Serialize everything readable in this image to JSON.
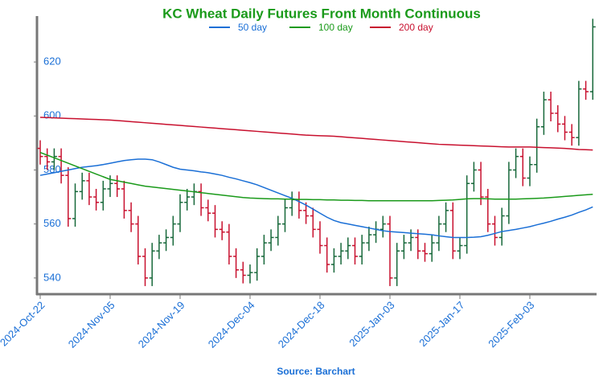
{
  "chart_data": {
    "type": "ohlc",
    "title": "KC Wheat Daily Futures Front Month Continuous",
    "source": "Source: Barchart",
    "categories": [
      "2024-Oct-22",
      null,
      null,
      null,
      null,
      null,
      null,
      null,
      null,
      null,
      "2024-Nov-05",
      null,
      null,
      null,
      null,
      null,
      null,
      null,
      null,
      null,
      "2024-Nov-19",
      null,
      null,
      null,
      null,
      null,
      null,
      null,
      null,
      null,
      "2024-Dec-04",
      null,
      null,
      null,
      null,
      null,
      null,
      null,
      null,
      null,
      "2024-Dec-18",
      null,
      null,
      null,
      null,
      null,
      null,
      null,
      null,
      null,
      "2025-Jan-03",
      null,
      null,
      null,
      null,
      null,
      null,
      null,
      null,
      null,
      "2025-Jan-17",
      null,
      null,
      null,
      null,
      null,
      null,
      null,
      null,
      null,
      "2025-Feb-03",
      null,
      null,
      null,
      null,
      null,
      null,
      null,
      null,
      null
    ],
    "open": [
      588,
      585,
      583,
      585,
      578,
      562,
      572,
      576,
      570,
      568,
      573,
      575,
      573,
      565,
      560,
      548,
      540,
      550,
      553,
      555,
      560,
      568,
      570,
      572,
      566,
      564,
      558,
      557,
      548,
      543,
      541,
      542,
      548,
      553,
      555,
      560,
      566,
      569,
      565,
      563,
      558,
      552,
      545,
      548,
      550,
      552,
      548,
      553,
      556,
      558,
      560,
      540,
      550,
      553,
      555,
      550,
      549,
      553,
      560,
      565,
      550,
      552,
      575,
      580,
      570,
      560,
      555,
      563,
      580,
      585,
      577,
      582,
      596,
      606,
      601,
      597,
      594,
      592,
      610,
      609
    ],
    "high": [
      591,
      588,
      588,
      588,
      581,
      575,
      579,
      579,
      573,
      576,
      578,
      578,
      576,
      568,
      563,
      551,
      553,
      556,
      558,
      563,
      571,
      573,
      575,
      575,
      569,
      567,
      561,
      560,
      551,
      546,
      545,
      551,
      556,
      558,
      563,
      569,
      572,
      572,
      568,
      566,
      561,
      555,
      551,
      553,
      555,
      555,
      556,
      559,
      561,
      563,
      563,
      553,
      556,
      558,
      558,
      553,
      556,
      563,
      568,
      568,
      555,
      578,
      583,
      583,
      573,
      563,
      566,
      583,
      588,
      588,
      585,
      599,
      609,
      609,
      604,
      600,
      597,
      613,
      613,
      636
    ],
    "low": [
      582,
      580,
      580,
      575,
      559,
      559,
      569,
      567,
      565,
      565,
      570,
      570,
      562,
      557,
      545,
      537,
      537,
      547,
      550,
      552,
      557,
      565,
      567,
      563,
      561,
      555,
      554,
      545,
      540,
      538,
      538,
      539,
      545,
      550,
      552,
      557,
      563,
      562,
      560,
      555,
      549,
      542,
      542,
      545,
      547,
      545,
      545,
      550,
      553,
      555,
      537,
      537,
      547,
      550,
      547,
      546,
      546,
      550,
      557,
      547,
      547,
      549,
      572,
      567,
      557,
      552,
      552,
      560,
      577,
      574,
      574,
      579,
      593,
      598,
      594,
      591,
      589,
      589,
      606,
      606
    ],
    "close": [
      585,
      583,
      585,
      578,
      562,
      572,
      576,
      570,
      568,
      573,
      575,
      573,
      565,
      560,
      548,
      540,
      550,
      553,
      555,
      560,
      568,
      570,
      572,
      566,
      564,
      558,
      557,
      548,
      543,
      541,
      542,
      548,
      553,
      555,
      560,
      566,
      569,
      565,
      563,
      558,
      552,
      545,
      548,
      550,
      552,
      548,
      553,
      556,
      558,
      560,
      540,
      550,
      553,
      555,
      550,
      549,
      553,
      560,
      565,
      550,
      552,
      575,
      580,
      570,
      560,
      555,
      563,
      580,
      585,
      577,
      582,
      596,
      606,
      601,
      597,
      594,
      592,
      610,
      609,
      633
    ],
    "up_color": "#17683a",
    "down_color": "#c8102e",
    "series": [
      {
        "name": "50 day",
        "color": "#1a6fd6",
        "values": [
          578,
          578.5,
          579,
          579.5,
          580,
          580.5,
          581,
          581.3,
          581.6,
          582,
          582.5,
          583,
          583.5,
          583.8,
          584,
          584,
          583.8,
          583,
          582,
          581,
          580.3,
          580,
          579.7,
          579.3,
          579,
          578.5,
          578,
          577.3,
          576.7,
          576,
          575.3,
          574.5,
          573.5,
          572.5,
          571.5,
          570.5,
          569.5,
          568.3,
          567,
          565.5,
          564,
          562.5,
          561.3,
          560.5,
          560,
          559.5,
          559,
          558.5,
          558,
          557.5,
          557.2,
          557,
          556.8,
          556.6,
          556.4,
          556.2,
          556,
          555.6,
          555.3,
          555,
          555,
          555,
          555.1,
          555.3,
          555.8,
          556.5,
          557.2,
          557.6,
          558,
          558.5,
          559,
          559.7,
          560.3,
          561,
          561.8,
          562.5,
          563.3,
          564.3,
          565.2,
          566.3
        ]
      },
      {
        "name": "100 day",
        "color": "#1a9a1a",
        "values": [
          586.5,
          585.5,
          584.5,
          583.5,
          582.5,
          581.5,
          580.5,
          579.5,
          578.5,
          577.5,
          576.5,
          576,
          575.5,
          575,
          574.5,
          574,
          573.7,
          573.4,
          573.1,
          572.8,
          572.5,
          572.2,
          571.9,
          571.6,
          571.3,
          571,
          570.7,
          570.4,
          570.1,
          569.8,
          569.6,
          569.5,
          569.4,
          569.3,
          569.3,
          569.2,
          569.2,
          569.1,
          569.1,
          569,
          569,
          568.9,
          568.9,
          568.8,
          568.8,
          568.7,
          568.7,
          568.6,
          568.6,
          568.6,
          568.6,
          568.6,
          568.6,
          568.6,
          568.6,
          568.6,
          568.6,
          568.7,
          568.8,
          568.9,
          569.1,
          569.3,
          569.4,
          569.4,
          569.3,
          569.2,
          569.2,
          569.2,
          569.2,
          569.3,
          569.4,
          569.5,
          569.6,
          569.8,
          570,
          570.2,
          570.4,
          570.6,
          570.8,
          571
        ]
      },
      {
        "name": "200 day",
        "color": "#c8102e",
        "values": [
          599.5,
          599.4,
          599.3,
          599.2,
          599.1,
          599,
          598.9,
          598.8,
          598.7,
          598.6,
          598.5,
          598.3,
          598.1,
          597.9,
          597.7,
          597.5,
          597.3,
          597.1,
          596.9,
          596.7,
          596.5,
          596.3,
          596.1,
          595.9,
          595.7,
          595.5,
          595.3,
          595.1,
          594.9,
          594.7,
          594.5,
          594.3,
          594.1,
          593.9,
          593.7,
          593.5,
          593.3,
          593.1,
          592.9,
          592.8,
          592.7,
          592.6,
          592.5,
          592.3,
          592.1,
          591.9,
          591.7,
          591.5,
          591.3,
          591.1,
          590.9,
          590.7,
          590.5,
          590.3,
          590.1,
          589.9,
          589.7,
          589.5,
          589.4,
          589.3,
          589.2,
          589.1,
          589,
          588.9,
          588.8,
          588.7,
          588.6,
          588.5,
          588.5,
          588.5,
          588.5,
          588.4,
          588.3,
          588.2,
          588.1,
          588,
          587.8,
          587.6,
          587.5,
          587.4
        ]
      }
    ],
    "ylim": [
      534,
      637
    ],
    "yticks": [
      540,
      560,
      580,
      600,
      620
    ]
  }
}
